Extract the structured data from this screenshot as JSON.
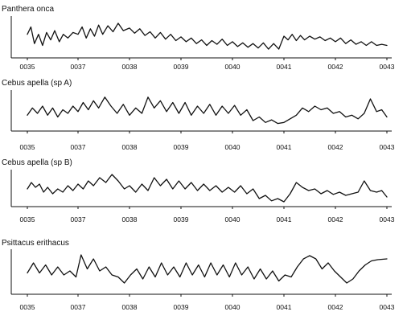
{
  "chart_data": [
    {
      "type": "line",
      "title": "Panthera onca",
      "tick_labels": [
        "0035",
        "0037",
        "0038",
        "0039",
        "0040",
        "0041",
        "0042",
        "0043"
      ],
      "x": [
        0,
        1,
        2,
        3,
        4,
        5,
        6,
        7
      ],
      "series": [
        {
          "color": "#111111",
          "values": [
            [
              0.0,
              0.55
            ],
            [
              0.07,
              0.75
            ],
            [
              0.14,
              0.3
            ],
            [
              0.22,
              0.55
            ],
            [
              0.3,
              0.25
            ],
            [
              0.38,
              0.6
            ],
            [
              0.46,
              0.4
            ],
            [
              0.54,
              0.65
            ],
            [
              0.63,
              0.35
            ],
            [
              0.71,
              0.55
            ],
            [
              0.8,
              0.45
            ],
            [
              0.9,
              0.6
            ],
            [
              1.0,
              0.55
            ],
            [
              1.08,
              0.75
            ],
            [
              1.16,
              0.45
            ],
            [
              1.24,
              0.7
            ],
            [
              1.32,
              0.5
            ],
            [
              1.4,
              0.8
            ],
            [
              1.48,
              0.55
            ],
            [
              1.58,
              0.78
            ],
            [
              1.68,
              0.62
            ],
            [
              1.78,
              0.85
            ],
            [
              1.88,
              0.65
            ],
            [
              2.0,
              0.72
            ],
            [
              2.1,
              0.58
            ],
            [
              2.2,
              0.7
            ],
            [
              2.3,
              0.52
            ],
            [
              2.4,
              0.62
            ],
            [
              2.5,
              0.45
            ],
            [
              2.6,
              0.6
            ],
            [
              2.7,
              0.42
            ],
            [
              2.8,
              0.55
            ],
            [
              2.9,
              0.38
            ],
            [
              3.0,
              0.48
            ],
            [
              3.1,
              0.35
            ],
            [
              3.2,
              0.45
            ],
            [
              3.3,
              0.3
            ],
            [
              3.4,
              0.4
            ],
            [
              3.5,
              0.25
            ],
            [
              3.6,
              0.38
            ],
            [
              3.7,
              0.28
            ],
            [
              3.8,
              0.42
            ],
            [
              3.9,
              0.25
            ],
            [
              4.0,
              0.35
            ],
            [
              4.1,
              0.22
            ],
            [
              4.2,
              0.32
            ],
            [
              4.3,
              0.2
            ],
            [
              4.4,
              0.3
            ],
            [
              4.5,
              0.18
            ],
            [
              4.6,
              0.32
            ],
            [
              4.7,
              0.15
            ],
            [
              4.8,
              0.3
            ],
            [
              4.9,
              0.15
            ],
            [
              5.0,
              0.5
            ],
            [
              5.08,
              0.4
            ],
            [
              5.16,
              0.55
            ],
            [
              5.24,
              0.38
            ],
            [
              5.32,
              0.52
            ],
            [
              5.4,
              0.4
            ],
            [
              5.5,
              0.5
            ],
            [
              5.6,
              0.42
            ],
            [
              5.7,
              0.48
            ],
            [
              5.8,
              0.38
            ],
            [
              5.9,
              0.45
            ],
            [
              6.0,
              0.35
            ],
            [
              6.1,
              0.45
            ],
            [
              6.2,
              0.3
            ],
            [
              6.3,
              0.4
            ],
            [
              6.4,
              0.28
            ],
            [
              6.5,
              0.35
            ],
            [
              6.6,
              0.25
            ],
            [
              6.7,
              0.35
            ],
            [
              6.8,
              0.25
            ],
            [
              6.9,
              0.28
            ],
            [
              7.0,
              0.25
            ]
          ]
        }
      ]
    },
    {
      "type": "line",
      "title": "Cebus apella (sp A)",
      "tick_labels": [
        "0035",
        "0037",
        "0038",
        "0039",
        "0040",
        "0041",
        "0042",
        "0043"
      ],
      "x": [
        0,
        1,
        2,
        3,
        4,
        5,
        6,
        7
      ],
      "series": [
        {
          "color": "#111111",
          "values": [
            [
              0.0,
              0.35
            ],
            [
              0.1,
              0.55
            ],
            [
              0.2,
              0.4
            ],
            [
              0.3,
              0.6
            ],
            [
              0.4,
              0.35
            ],
            [
              0.5,
              0.55
            ],
            [
              0.6,
              0.3
            ],
            [
              0.7,
              0.5
            ],
            [
              0.8,
              0.4
            ],
            [
              0.9,
              0.6
            ],
            [
              1.0,
              0.45
            ],
            [
              1.1,
              0.7
            ],
            [
              1.2,
              0.5
            ],
            [
              1.3,
              0.75
            ],
            [
              1.4,
              0.55
            ],
            [
              1.52,
              0.85
            ],
            [
              1.64,
              0.6
            ],
            [
              1.76,
              0.4
            ],
            [
              1.88,
              0.65
            ],
            [
              2.0,
              0.35
            ],
            [
              2.12,
              0.55
            ],
            [
              2.24,
              0.4
            ],
            [
              2.36,
              0.85
            ],
            [
              2.48,
              0.55
            ],
            [
              2.6,
              0.75
            ],
            [
              2.72,
              0.45
            ],
            [
              2.84,
              0.7
            ],
            [
              2.96,
              0.4
            ],
            [
              3.08,
              0.7
            ],
            [
              3.2,
              0.35
            ],
            [
              3.32,
              0.6
            ],
            [
              3.44,
              0.4
            ],
            [
              3.56,
              0.65
            ],
            [
              3.68,
              0.35
            ],
            [
              3.8,
              0.6
            ],
            [
              3.92,
              0.4
            ],
            [
              4.04,
              0.62
            ],
            [
              4.16,
              0.35
            ],
            [
              4.28,
              0.5
            ],
            [
              4.4,
              0.2
            ],
            [
              4.52,
              0.3
            ],
            [
              4.64,
              0.15
            ],
            [
              4.76,
              0.22
            ],
            [
              4.88,
              0.12
            ],
            [
              5.0,
              0.15
            ],
            [
              5.12,
              0.25
            ],
            [
              5.24,
              0.35
            ],
            [
              5.36,
              0.55
            ],
            [
              5.48,
              0.45
            ],
            [
              5.6,
              0.6
            ],
            [
              5.72,
              0.5
            ],
            [
              5.84,
              0.55
            ],
            [
              5.96,
              0.4
            ],
            [
              6.08,
              0.45
            ],
            [
              6.2,
              0.3
            ],
            [
              6.32,
              0.35
            ],
            [
              6.44,
              0.25
            ],
            [
              6.56,
              0.4
            ],
            [
              6.68,
              0.8
            ],
            [
              6.8,
              0.45
            ],
            [
              6.9,
              0.5
            ],
            [
              7.0,
              0.3
            ]
          ]
        }
      ]
    },
    {
      "type": "line",
      "title": "Cebus apella (sp B)",
      "tick_labels": [
        "0035",
        "0037",
        "0038",
        "0039",
        "0040",
        "0041",
        "0042",
        "0043"
      ],
      "x": [
        0,
        1,
        2,
        3,
        4,
        5,
        6,
        7
      ],
      "series": [
        {
          "color": "#111111",
          "values": [
            [
              0.0,
              0.45
            ],
            [
              0.08,
              0.65
            ],
            [
              0.16,
              0.5
            ],
            [
              0.24,
              0.6
            ],
            [
              0.32,
              0.35
            ],
            [
              0.4,
              0.5
            ],
            [
              0.5,
              0.3
            ],
            [
              0.6,
              0.45
            ],
            [
              0.7,
              0.35
            ],
            [
              0.8,
              0.55
            ],
            [
              0.9,
              0.4
            ],
            [
              1.0,
              0.6
            ],
            [
              1.1,
              0.45
            ],
            [
              1.2,
              0.7
            ],
            [
              1.3,
              0.55
            ],
            [
              1.42,
              0.8
            ],
            [
              1.54,
              0.65
            ],
            [
              1.66,
              0.9
            ],
            [
              1.78,
              0.7
            ],
            [
              1.9,
              0.45
            ],
            [
              2.0,
              0.55
            ],
            [
              2.12,
              0.35
            ],
            [
              2.24,
              0.6
            ],
            [
              2.36,
              0.4
            ],
            [
              2.48,
              0.8
            ],
            [
              2.6,
              0.55
            ],
            [
              2.72,
              0.75
            ],
            [
              2.84,
              0.45
            ],
            [
              2.96,
              0.7
            ],
            [
              3.08,
              0.45
            ],
            [
              3.2,
              0.65
            ],
            [
              3.32,
              0.4
            ],
            [
              3.44,
              0.6
            ],
            [
              3.56,
              0.4
            ],
            [
              3.68,
              0.55
            ],
            [
              3.8,
              0.35
            ],
            [
              3.92,
              0.5
            ],
            [
              4.04,
              0.35
            ],
            [
              4.16,
              0.55
            ],
            [
              4.28,
              0.3
            ],
            [
              4.4,
              0.45
            ],
            [
              4.52,
              0.15
            ],
            [
              4.64,
              0.25
            ],
            [
              4.76,
              0.08
            ],
            [
              4.88,
              0.15
            ],
            [
              5.0,
              0.05
            ],
            [
              5.12,
              0.3
            ],
            [
              5.24,
              0.65
            ],
            [
              5.36,
              0.5
            ],
            [
              5.48,
              0.4
            ],
            [
              5.6,
              0.45
            ],
            [
              5.72,
              0.3
            ],
            [
              5.84,
              0.4
            ],
            [
              5.96,
              0.28
            ],
            [
              6.08,
              0.35
            ],
            [
              6.2,
              0.25
            ],
            [
              6.32,
              0.3
            ],
            [
              6.44,
              0.35
            ],
            [
              6.56,
              0.7
            ],
            [
              6.68,
              0.4
            ],
            [
              6.8,
              0.35
            ],
            [
              6.9,
              0.4
            ],
            [
              7.0,
              0.2
            ]
          ]
        }
      ]
    },
    {
      "type": "line",
      "title": "Psittacus erithacus",
      "tick_labels": [
        "0035",
        "0037",
        "0038",
        "0039",
        "0040",
        "0041",
        "0042",
        "0043"
      ],
      "x": [
        0,
        1,
        2,
        3,
        4,
        5,
        6,
        7
      ],
      "series": [
        {
          "color": "#111111",
          "values": [
            [
              0.0,
              0.45
            ],
            [
              0.12,
              0.7
            ],
            [
              0.24,
              0.45
            ],
            [
              0.36,
              0.65
            ],
            [
              0.48,
              0.4
            ],
            [
              0.6,
              0.6
            ],
            [
              0.72,
              0.4
            ],
            [
              0.84,
              0.5
            ],
            [
              0.96,
              0.35
            ],
            [
              1.06,
              0.9
            ],
            [
              1.18,
              0.55
            ],
            [
              1.3,
              0.8
            ],
            [
              1.42,
              0.5
            ],
            [
              1.54,
              0.6
            ],
            [
              1.66,
              0.4
            ],
            [
              1.78,
              0.35
            ],
            [
              1.9,
              0.2
            ],
            [
              2.02,
              0.4
            ],
            [
              2.14,
              0.55
            ],
            [
              2.26,
              0.3
            ],
            [
              2.38,
              0.6
            ],
            [
              2.5,
              0.35
            ],
            [
              2.62,
              0.7
            ],
            [
              2.74,
              0.4
            ],
            [
              2.86,
              0.6
            ],
            [
              2.98,
              0.35
            ],
            [
              3.1,
              0.7
            ],
            [
              3.22,
              0.4
            ],
            [
              3.34,
              0.65
            ],
            [
              3.46,
              0.35
            ],
            [
              3.58,
              0.7
            ],
            [
              3.7,
              0.4
            ],
            [
              3.82,
              0.65
            ],
            [
              3.94,
              0.35
            ],
            [
              4.06,
              0.7
            ],
            [
              4.18,
              0.4
            ],
            [
              4.3,
              0.6
            ],
            [
              4.42,
              0.3
            ],
            [
              4.54,
              0.55
            ],
            [
              4.66,
              0.3
            ],
            [
              4.78,
              0.5
            ],
            [
              4.9,
              0.25
            ],
            [
              5.02,
              0.4
            ],
            [
              5.14,
              0.35
            ],
            [
              5.26,
              0.6
            ],
            [
              5.38,
              0.8
            ],
            [
              5.5,
              0.88
            ],
            [
              5.62,
              0.8
            ],
            [
              5.74,
              0.55
            ],
            [
              5.86,
              0.7
            ],
            [
              5.98,
              0.5
            ],
            [
              6.1,
              0.35
            ],
            [
              6.22,
              0.2
            ],
            [
              6.34,
              0.3
            ],
            [
              6.46,
              0.5
            ],
            [
              6.58,
              0.65
            ],
            [
              6.7,
              0.75
            ],
            [
              6.82,
              0.78
            ],
            [
              7.0,
              0.8
            ]
          ]
        }
      ]
    }
  ]
}
